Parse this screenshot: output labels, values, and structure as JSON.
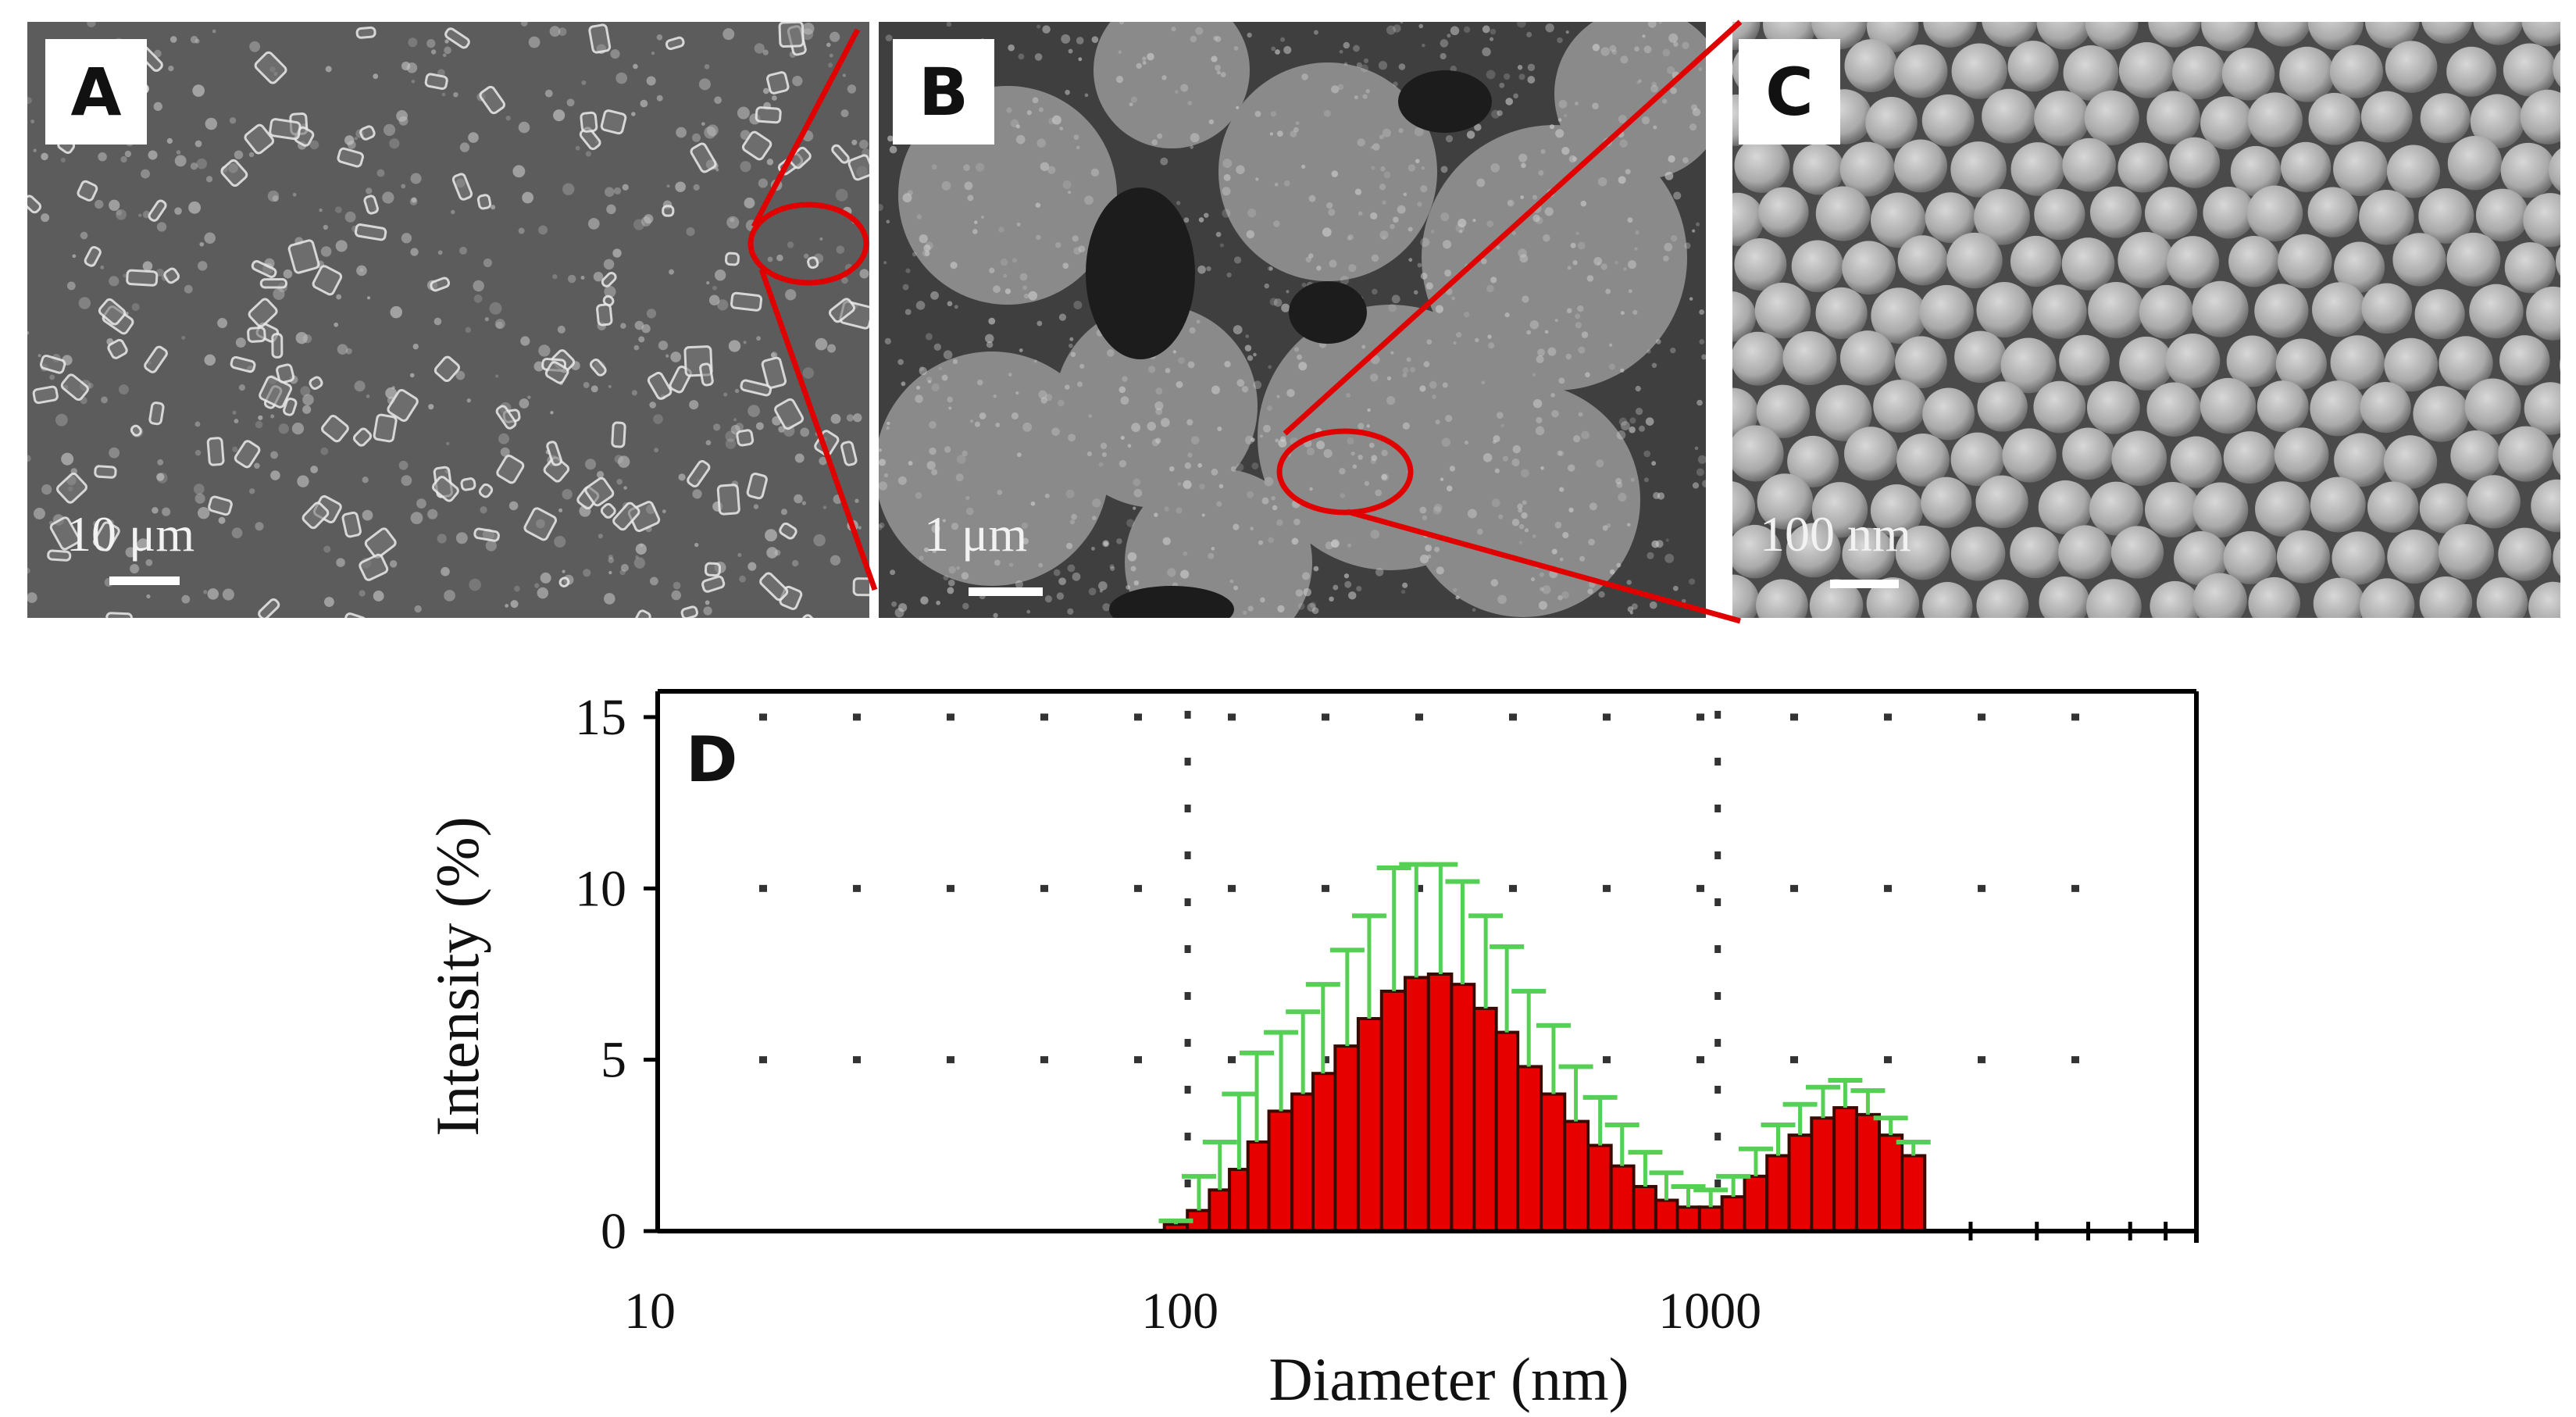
{
  "panels": {
    "a": {
      "label": "A",
      "scale_bar": "10 μm"
    },
    "b": {
      "label": "B",
      "scale_bar": "1 μm"
    },
    "c": {
      "label": "C",
      "scale_bar": "100 nm"
    }
  },
  "chart_data": {
    "type": "bar",
    "panel_label": "D",
    "xlabel": "Diameter (nm)",
    "ylabel": "Intensity (%)",
    "x_scale": "log",
    "xlim": [
      10,
      8000
    ],
    "ylim": [
      0,
      15
    ],
    "x_ticks": [
      "10",
      "100",
      "1000"
    ],
    "y_ticks": [
      "0",
      "5",
      "10",
      "15"
    ],
    "grid": "dotted",
    "colors": {
      "bar_fill": "#e60000",
      "bar_edge": "#3a0a00",
      "error_bar": "#55d055",
      "red_outline": "#e00000",
      "axis": "#000000"
    },
    "series": [
      {
        "x": [
          95,
          105,
          115,
          125,
          135,
          150,
          165,
          180,
          200,
          220,
          245,
          270,
          300,
          330,
          365,
          400,
          440,
          490,
          540,
          600,
          660,
          730,
          800,
          880,
          970,
          1070,
          1180,
          1300,
          1430,
          1580,
          1740,
          1920,
          2120,
          2340
        ],
        "values": [
          0.2,
          0.6,
          1.2,
          1.8,
          2.6,
          3.5,
          4.0,
          4.6,
          5.4,
          6.2,
          7.0,
          7.4,
          7.5,
          7.2,
          6.5,
          5.8,
          4.8,
          4.0,
          3.2,
          2.5,
          1.9,
          1.3,
          0.9,
          0.7,
          0.7,
          1.0,
          1.6,
          2.2,
          2.8,
          3.3,
          3.6,
          3.4,
          2.8,
          2.2
        ],
        "errors": [
          0.1,
          1.0,
          1.4,
          2.2,
          2.6,
          2.3,
          2.4,
          2.6,
          2.8,
          3.0,
          3.6,
          3.3,
          3.2,
          3.0,
          2.7,
          2.5,
          2.2,
          2.0,
          1.6,
          1.4,
          1.2,
          1.0,
          0.8,
          0.6,
          0.5,
          0.6,
          0.8,
          0.9,
          0.9,
          0.9,
          0.8,
          0.7,
          0.5,
          0.4
        ]
      }
    ]
  }
}
